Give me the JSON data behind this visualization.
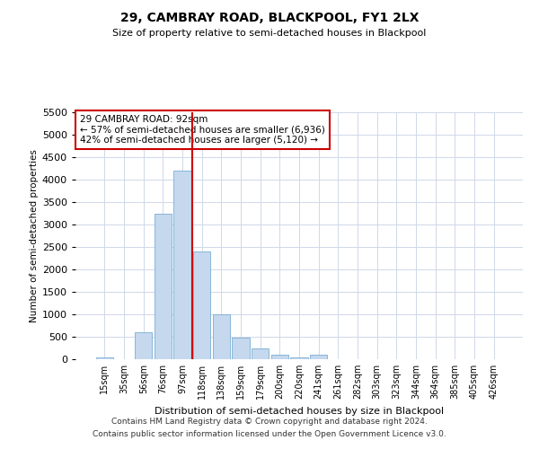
{
  "title1": "29, CAMBRAY ROAD, BLACKPOOL, FY1 2LX",
  "title2": "Size of property relative to semi-detached houses in Blackpool",
  "xlabel": "Distribution of semi-detached houses by size in Blackpool",
  "ylabel": "Number of semi-detached properties",
  "categories": [
    "15sqm",
    "35sqm",
    "56sqm",
    "76sqm",
    "97sqm",
    "118sqm",
    "138sqm",
    "159sqm",
    "179sqm",
    "200sqm",
    "220sqm",
    "241sqm",
    "261sqm",
    "282sqm",
    "303sqm",
    "323sqm",
    "344sqm",
    "364sqm",
    "385sqm",
    "405sqm",
    "426sqm"
  ],
  "values": [
    50,
    0,
    600,
    3250,
    4200,
    2400,
    1000,
    480,
    250,
    100,
    50,
    100,
    0,
    0,
    0,
    0,
    0,
    0,
    0,
    0,
    0
  ],
  "bar_color": "#c5d8ee",
  "bar_edge_color": "#7aadd4",
  "vline_x": 4.5,
  "vline_color": "#cc0000",
  "annotation_text": "29 CAMBRAY ROAD: 92sqm\n← 57% of semi-detached houses are smaller (6,936)\n42% of semi-detached houses are larger (5,120) →",
  "annotation_box_color": "#ffffff",
  "annotation_box_edge": "#cc0000",
  "ylim": [
    0,
    5500
  ],
  "yticks": [
    0,
    500,
    1000,
    1500,
    2000,
    2500,
    3000,
    3500,
    4000,
    4500,
    5000,
    5500
  ],
  "background_color": "#ffffff",
  "grid_color": "#d0d8e8",
  "footer1": "Contains HM Land Registry data © Crown copyright and database right 2024.",
  "footer2": "Contains public sector information licensed under the Open Government Licence v3.0."
}
